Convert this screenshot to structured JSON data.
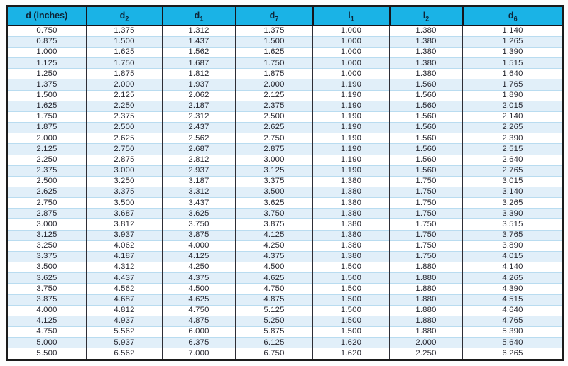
{
  "table": {
    "name": "shaft-dimension-table",
    "columns": [
      {
        "base": "d (inches)",
        "sub": ""
      },
      {
        "base": "d",
        "sub": "2"
      },
      {
        "base": "d",
        "sub": "1"
      },
      {
        "base": "d",
        "sub": "7"
      },
      {
        "base": "l",
        "sub": "1"
      },
      {
        "base": "l",
        "sub": "2"
      },
      {
        "base": "d",
        "sub": "6"
      }
    ]
  },
  "colors": {
    "header_bg": "#1ab3e6",
    "header_text": "#0d2436",
    "row_bg": "#ffffff",
    "row_alt_bg": "#e1eff9",
    "row_separator": "#b9dcf0",
    "column_separator": "#2e2e36",
    "outer_border": "#1b1b1b",
    "body_text": "#25252e"
  },
  "chart_data": {
    "type": "table",
    "title": "",
    "columns": [
      "d (inches)",
      "d2",
      "d1",
      "d7",
      "l1",
      "l2",
      "d6"
    ],
    "rows": [
      [
        "0.750",
        "1.375",
        "1.312",
        "1.375",
        "1.000",
        "1.380",
        "1.140"
      ],
      [
        "0.875",
        "1.500",
        "1.437",
        "1.500",
        "1.000",
        "1.380",
        "1.265"
      ],
      [
        "1.000",
        "1.625",
        "1.562",
        "1.625",
        "1.000",
        "1.380",
        "1.390"
      ],
      [
        "1.125",
        "1.750",
        "1.687",
        "1.750",
        "1.000",
        "1.380",
        "1.515"
      ],
      [
        "1.250",
        "1.875",
        "1.812",
        "1.875",
        "1.000",
        "1.380",
        "1.640"
      ],
      [
        "1.375",
        "2.000",
        "1.937",
        "2.000",
        "1.190",
        "1.560",
        "1.765"
      ],
      [
        "1.500",
        "2.125",
        "2.062",
        "2.125",
        "1.190",
        "1.560",
        "1.890"
      ],
      [
        "1.625",
        "2.250",
        "2.187",
        "2.375",
        "1.190",
        "1.560",
        "2.015"
      ],
      [
        "1.750",
        "2.375",
        "2.312",
        "2.500",
        "1.190",
        "1.560",
        "2.140"
      ],
      [
        "1.875",
        "2.500",
        "2.437",
        "2.625",
        "1.190",
        "1.560",
        "2.265"
      ],
      [
        "2.000",
        "2.625",
        "2.562",
        "2.750",
        "1.190",
        "1.560",
        "2.390"
      ],
      [
        "2.125",
        "2.750",
        "2.687",
        "2.875",
        "1.190",
        "1.560",
        "2.515"
      ],
      [
        "2.250",
        "2.875",
        "2.812",
        "3.000",
        "1.190",
        "1.560",
        "2.640"
      ],
      [
        "2.375",
        "3.000",
        "2.937",
        "3.125",
        "1.190",
        "1.560",
        "2.765"
      ],
      [
        "2.500",
        "3.250",
        "3.187",
        "3.375",
        "1.380",
        "1.750",
        "3.015"
      ],
      [
        "2.625",
        "3.375",
        "3.312",
        "3.500",
        "1.380",
        "1.750",
        "3.140"
      ],
      [
        "2.750",
        "3.500",
        "3.437",
        "3.625",
        "1.380",
        "1.750",
        "3.265"
      ],
      [
        "2.875",
        "3.687",
        "3.625",
        "3.750",
        "1.380",
        "1.750",
        "3.390"
      ],
      [
        "3.000",
        "3.812",
        "3.750",
        "3.875",
        "1.380",
        "1.750",
        "3.515"
      ],
      [
        "3.125",
        "3.937",
        "3.875",
        "4.125",
        "1.380",
        "1.750",
        "3.765"
      ],
      [
        "3.250",
        "4.062",
        "4.000",
        "4.250",
        "1.380",
        "1.750",
        "3.890"
      ],
      [
        "3.375",
        "4.187",
        "4.125",
        "4.375",
        "1.380",
        "1.750",
        "4.015"
      ],
      [
        "3.500",
        "4.312",
        "4.250",
        "4.500",
        "1.500",
        "1.880",
        "4.140"
      ],
      [
        "3.625",
        "4.437",
        "4.375",
        "4.625",
        "1.500",
        "1.880",
        "4.265"
      ],
      [
        "3.750",
        "4.562",
        "4.500",
        "4.750",
        "1.500",
        "1.880",
        "4.390"
      ],
      [
        "3.875",
        "4.687",
        "4.625",
        "4.875",
        "1.500",
        "1.880",
        "4.515"
      ],
      [
        "4.000",
        "4.812",
        "4.750",
        "5.125",
        "1.500",
        "1.880",
        "4.640"
      ],
      [
        "4.125",
        "4.937",
        "4.875",
        "5.250",
        "1.500",
        "1.880",
        "4.765"
      ],
      [
        "4.750",
        "5.562",
        "6.000",
        "5.875",
        "1.500",
        "1.880",
        "5.390"
      ],
      [
        "5.000",
        "5.937",
        "6.375",
        "6.125",
        "1.620",
        "2.000",
        "5.640"
      ],
      [
        "5.500",
        "6.562",
        "7.000",
        "6.750",
        "1.620",
        "2.250",
        "6.265"
      ]
    ]
  }
}
